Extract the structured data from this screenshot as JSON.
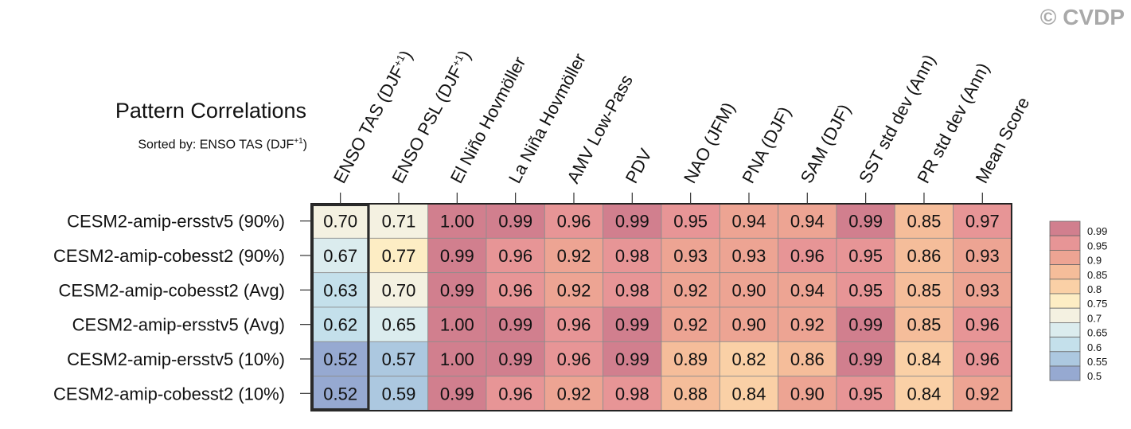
{
  "watermark": "© CVDP",
  "chart_data": {
    "type": "heatmap",
    "title": "Pattern Correlations",
    "subtitle": "Sorted by: ENSO TAS (DJF",
    "subtitle_sup": "+1",
    "subtitle_end": ")",
    "columns": [
      {
        "label": "ENSO TAS (DJF",
        "sup": "+1",
        "tail": ")"
      },
      {
        "label": "ENSO PSL (DJF",
        "sup": "+1",
        "tail": ")"
      },
      {
        "label": "El Niño Hovmöller",
        "sup": "",
        "tail": ""
      },
      {
        "label": "La Niña Hovmöller",
        "sup": "",
        "tail": ""
      },
      {
        "label": "AMV Low-Pass",
        "sup": "",
        "tail": ""
      },
      {
        "label": "PDV",
        "sup": "",
        "tail": ""
      },
      {
        "label": "NAO (JFM)",
        "sup": "",
        "tail": ""
      },
      {
        "label": "PNA (DJF)",
        "sup": "",
        "tail": ""
      },
      {
        "label": "SAM (DJF)",
        "sup": "",
        "tail": ""
      },
      {
        "label": "SST std dev (Ann)",
        "sup": "",
        "tail": ""
      },
      {
        "label": "PR std dev (Ann)",
        "sup": "",
        "tail": ""
      },
      {
        "label": "Mean Score",
        "sup": "",
        "tail": ""
      }
    ],
    "rows": [
      "CESM2-amip-ersstv5 (90%)",
      "CESM2-amip-cobesst2 (90%)",
      "CESM2-amip-cobesst2 (Avg)",
      "CESM2-amip-ersstv5 (Avg)",
      "CESM2-amip-ersstv5 (10%)",
      "CESM2-amip-cobesst2 (10%)"
    ],
    "values": [
      [
        "0.70",
        "0.71",
        "1.00",
        "0.99",
        "0.96",
        "0.99",
        "0.95",
        "0.94",
        "0.94",
        "0.99",
        "0.85",
        "0.97"
      ],
      [
        "0.67",
        "0.77",
        "0.99",
        "0.96",
        "0.92",
        "0.98",
        "0.93",
        "0.93",
        "0.96",
        "0.95",
        "0.86",
        "0.93"
      ],
      [
        "0.63",
        "0.70",
        "0.99",
        "0.96",
        "0.92",
        "0.98",
        "0.92",
        "0.90",
        "0.94",
        "0.95",
        "0.85",
        "0.93"
      ],
      [
        "0.62",
        "0.65",
        "1.00",
        "0.99",
        "0.96",
        "0.99",
        "0.92",
        "0.90",
        "0.92",
        "0.99",
        "0.85",
        "0.96"
      ],
      [
        "0.52",
        "0.57",
        "1.00",
        "0.99",
        "0.96",
        "0.99",
        "0.89",
        "0.82",
        "0.86",
        "0.99",
        "0.84",
        "0.96"
      ],
      [
        "0.52",
        "0.59",
        "0.99",
        "0.96",
        "0.92",
        "0.98",
        "0.88",
        "0.84",
        "0.90",
        "0.95",
        "0.84",
        "0.92"
      ]
    ],
    "highlight_column": 0,
    "colorbar": {
      "levels": [
        "0.99",
        "0.95",
        "0.9",
        "0.85",
        "0.8",
        "0.75",
        "0.7",
        "0.65",
        "0.6",
        "0.55",
        "0.5"
      ],
      "colors": [
        "#d17f8e",
        "#e79596",
        "#eda493",
        "#f5bd9a",
        "#fad0a6",
        "#fdedc4",
        "#f4f1e1",
        "#dbecee",
        "#c4e0eb",
        "#acc8e0",
        "#96a9d1"
      ]
    }
  }
}
